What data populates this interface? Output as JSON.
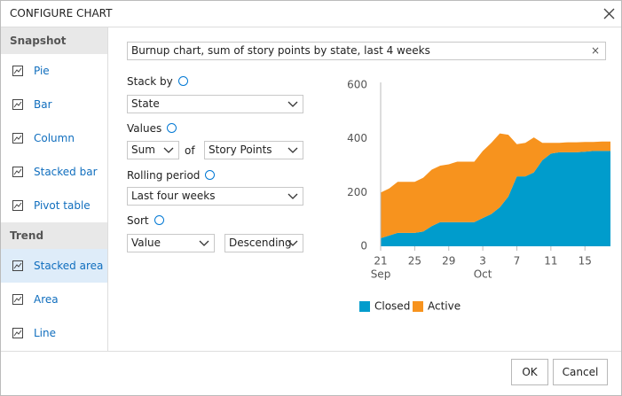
{
  "dialog": {
    "title": "CONFIGURE CHART"
  },
  "sidebar": {
    "sections": [
      {
        "title": "Snapshot",
        "items": [
          "Pie",
          "Bar",
          "Column",
          "Stacked bar",
          "Pivot table"
        ]
      },
      {
        "title": "Trend",
        "items": [
          "Stacked area",
          "Area",
          "Line"
        ]
      }
    ]
  },
  "form": {
    "chart_title": "Burnup chart, sum of story points by state, last 4 weeks",
    "stack_by": {
      "label": "Stack by",
      "value": "State"
    },
    "values": {
      "label": "Values",
      "aggregation": "Sum",
      "of": "of",
      "field": "Story Points"
    },
    "rolling_period": {
      "label": "Rolling period",
      "value": "Last four weeks"
    },
    "sort": {
      "label": "Sort",
      "field": "Value",
      "direction": "Descending"
    }
  },
  "chart_data": {
    "type": "stacked_area",
    "categories": [
      "21",
      null,
      null,
      null,
      "25",
      null,
      null,
      null,
      "29",
      null,
      null,
      null,
      "3",
      null,
      null,
      null,
      "7",
      null,
      null,
      null,
      "11",
      null,
      null,
      null,
      "15",
      null,
      null,
      null
    ],
    "category_sublabels": [
      "Sep",
      null,
      null,
      null,
      null,
      null,
      null,
      null,
      null,
      null,
      null,
      null,
      "Oct",
      null,
      null,
      null,
      null,
      null,
      null,
      null,
      null,
      null,
      null,
      null,
      null,
      null,
      null,
      null
    ],
    "series": [
      {
        "name": "Closed",
        "color": "#009ccc",
        "values": [
          30,
          40,
          50,
          50,
          50,
          55,
          75,
          90,
          90,
          90,
          90,
          90,
          105,
          120,
          145,
          185,
          260,
          260,
          275,
          320,
          345,
          350,
          350,
          350,
          352,
          355,
          355,
          355
        ]
      },
      {
        "name": "Active",
        "color": "#f7931e",
        "values": [
          170,
          175,
          190,
          190,
          190,
          200,
          210,
          210,
          215,
          225,
          225,
          225,
          250,
          265,
          275,
          230,
          120,
          125,
          130,
          65,
          40,
          35,
          37,
          37,
          36,
          33,
          35,
          35
        ]
      }
    ],
    "ylim": [
      0,
      600
    ],
    "yticks": [
      0,
      200,
      400,
      600
    ],
    "grid": false
  },
  "buttons": [
    "OK",
    "Cancel"
  ]
}
